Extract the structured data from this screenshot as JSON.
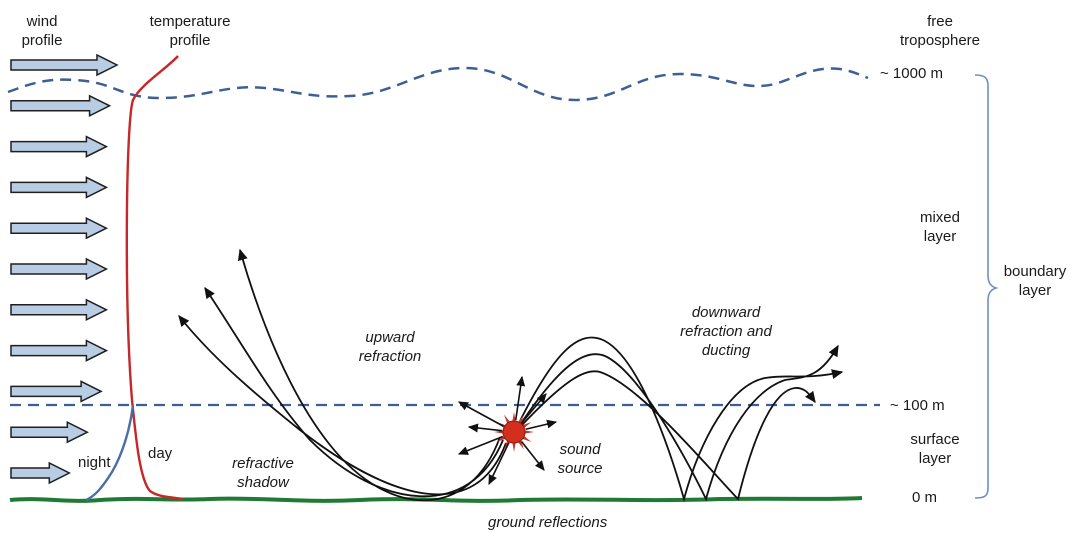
{
  "labels": {
    "wind_profile": [
      "wind",
      "profile"
    ],
    "temperature_profile": [
      "temperature",
      "profile"
    ],
    "free_troposphere": [
      "free",
      "troposphere"
    ],
    "mixed_layer": [
      "mixed",
      "layer"
    ],
    "boundary_layer": [
      "boundary",
      "layer"
    ],
    "surface_layer": [
      "surface",
      "layer"
    ],
    "level_1000": "~ 1000 m",
    "level_100": "~ 100 m",
    "level_0": "0 m",
    "night": "night",
    "day": "day",
    "refractive_shadow": [
      "refractive",
      "shadow"
    ],
    "upward_refraction": [
      "upward",
      "refraction"
    ],
    "downward_refraction": [
      "downward",
      "refraction and",
      "ducting"
    ],
    "sound_source": [
      "sound",
      "source"
    ],
    "ground_reflections": "ground reflections"
  },
  "colors": {
    "arrow_fill": "#b8cce4",
    "arrow_stroke": "#1f1f1f",
    "temp_day": "#c62828",
    "temp_night": "#4a6fa5",
    "layer_line": "#3c5f95",
    "ground": "#1e7a34",
    "source": "#d32f1f",
    "bracket": "#6f8fc4",
    "rays": "#111111"
  },
  "wind_arrows": {
    "count": 11,
    "relative_strength": [
      1.0,
      0.93,
      0.9,
      0.9,
      0.9,
      0.9,
      0.9,
      0.9,
      0.85,
      0.72,
      0.55
    ]
  }
}
